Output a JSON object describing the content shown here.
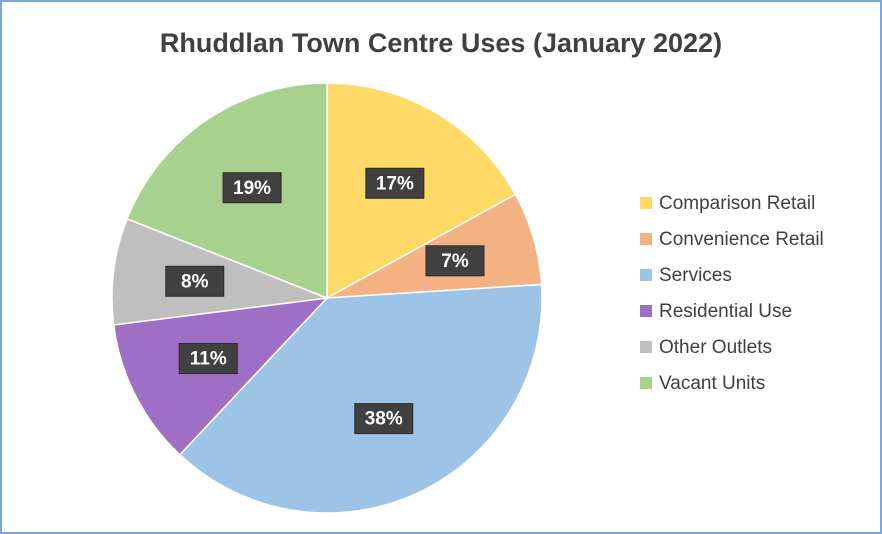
{
  "chart_data": {
    "type": "pie",
    "title": "Rhuddlan Town Centre Uses (January 2022)",
    "categories": [
      "Comparison Retail",
      "Convenience Retail",
      "Services",
      "Residential Use",
      "Other Outlets",
      "Vacant Units"
    ],
    "values": [
      17,
      7,
      38,
      11,
      8,
      19
    ],
    "value_labels": [
      "17%",
      "7%",
      "38%",
      "11%",
      "8%",
      "19%"
    ],
    "colors": [
      "#ffd966",
      "#f4b183",
      "#9dc3e6",
      "#9e6fc4",
      "#bfbfbf",
      "#a9d18e"
    ],
    "legend": "right"
  }
}
